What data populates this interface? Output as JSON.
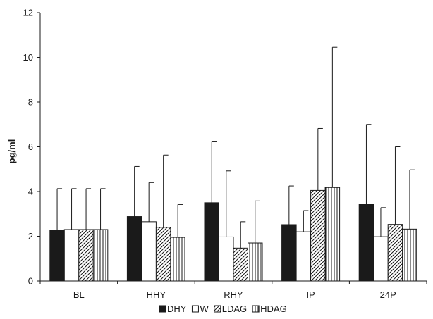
{
  "chart_data": {
    "type": "bar",
    "ylabel": "pg/ml",
    "xlabel": "",
    "title": "",
    "ylim": [
      0,
      12
    ],
    "yticks": [
      0,
      2,
      4,
      6,
      8,
      10,
      12
    ],
    "categories": [
      "BL",
      "HHY",
      "RHY",
      "IP",
      "24P"
    ],
    "grid": false,
    "legend_position": "bottom",
    "series": [
      {
        "name": "DHY",
        "fill": "solid",
        "color": "#1a1a1a",
        "values": [
          2.28,
          2.88,
          3.5,
          2.52,
          3.42
        ],
        "error_upper": [
          4.13,
          5.12,
          6.25,
          4.25,
          7.0
        ]
      },
      {
        "name": "W",
        "fill": "white",
        "color": "#1a1a1a",
        "values": [
          2.3,
          2.65,
          1.97,
          2.2,
          1.98
        ],
        "error_upper": [
          4.13,
          4.4,
          4.92,
          3.15,
          3.28
        ]
      },
      {
        "name": "LDAG",
        "fill": "diagonal-hatch",
        "color": "#1a1a1a",
        "values": [
          2.3,
          2.4,
          1.47,
          4.05,
          2.53
        ],
        "error_upper": [
          4.13,
          5.63,
          2.65,
          6.82,
          6.0
        ]
      },
      {
        "name": "HDAG",
        "fill": "vertical-hatch",
        "color": "#1a1a1a",
        "values": [
          2.3,
          1.95,
          1.7,
          4.18,
          2.32
        ],
        "error_upper": [
          4.13,
          3.42,
          3.58,
          10.45,
          4.97
        ]
      }
    ]
  }
}
